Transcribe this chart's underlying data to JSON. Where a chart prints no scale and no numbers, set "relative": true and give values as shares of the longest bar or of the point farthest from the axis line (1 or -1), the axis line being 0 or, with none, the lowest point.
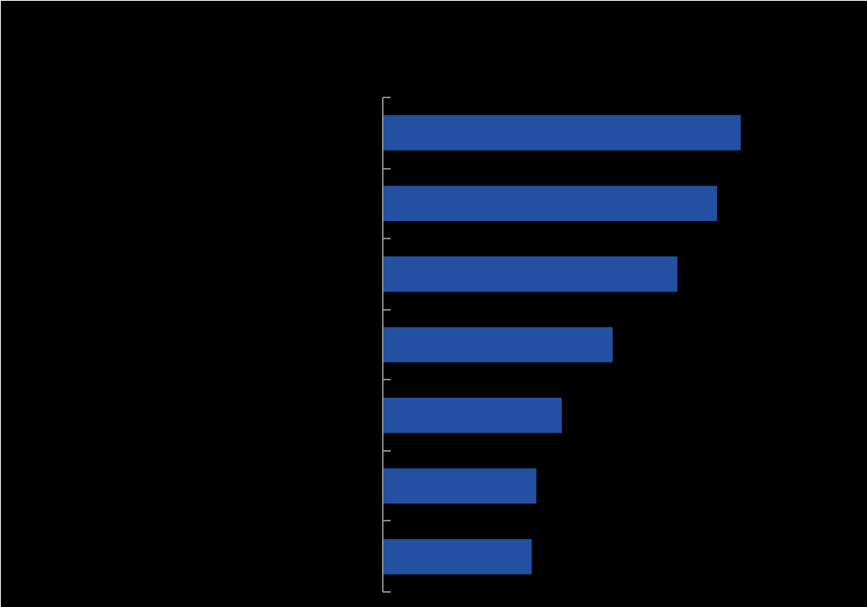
{
  "chart_data": {
    "type": "bar",
    "orientation": "horizontal",
    "relative": true,
    "categories": [
      null,
      null,
      null,
      null,
      null,
      null,
      null
    ],
    "values": [
      1,
      0.934,
      0.823,
      0.642,
      0.5,
      0.429,
      0.416
    ],
    "color": "#2350a0",
    "grid": false
  }
}
